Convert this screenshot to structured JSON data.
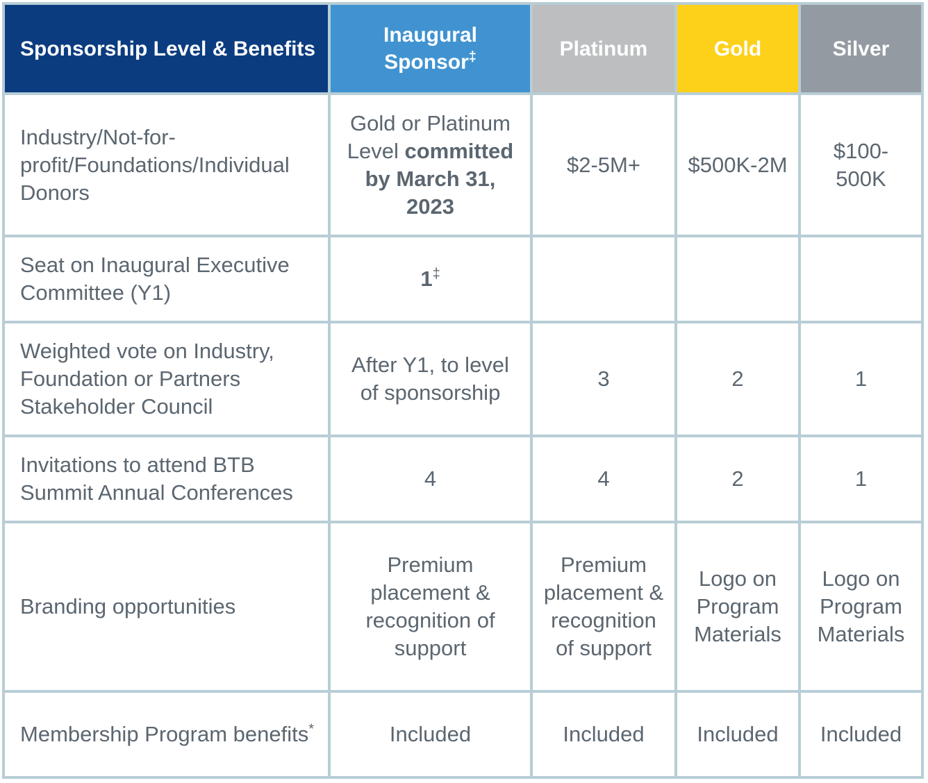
{
  "table": {
    "header": [
      {
        "text": "Sponsorship Level & Benefits"
      },
      {
        "text": "Inaugural Sponsor",
        "sup": "‡"
      },
      {
        "text": "Platinum"
      },
      {
        "text": "Gold"
      },
      {
        "text": "Silver"
      }
    ],
    "rows": [
      [
        {
          "text": "Industry/Not-for-profit/Foundations/Individual Donors"
        },
        {
          "text": "Gold or Platinum Level",
          "bold": "committed by March 31, 2023"
        },
        {
          "text": "$2-5M+"
        },
        {
          "text": "$500K-2M"
        },
        {
          "text": "$100-500K"
        }
      ],
      [
        {
          "text": "Seat on Inaugural Executive Committee (Y1)"
        },
        {
          "bold": "1",
          "sup": "‡"
        },
        null,
        null,
        null
      ],
      [
        {
          "text": "Weighted vote on Industry, Foundation or Partners Stakeholder Council"
        },
        {
          "text": "After Y1, to level of sponsorship"
        },
        {
          "text": "3"
        },
        {
          "text": "2"
        },
        {
          "text": "1"
        }
      ],
      [
        {
          "text": "Invitations to attend BTB Summit Annual Conferences"
        },
        {
          "text": "4"
        },
        {
          "text": "4"
        },
        {
          "text": "2"
        },
        {
          "text": "1"
        }
      ],
      [
        {
          "text": "Branding opportunities"
        },
        {
          "text": "Premium placement & recognition of support"
        },
        {
          "text": "Premium placement & recognition of support"
        },
        {
          "text": "Logo on Program Materials"
        },
        {
          "text": "Logo on Program Materials"
        }
      ],
      [
        {
          "text": "Membership Program benefits",
          "sup": "*"
        },
        {
          "text": "Included"
        },
        {
          "text": "Included"
        },
        {
          "text": "Included"
        },
        {
          "text": "Included"
        }
      ]
    ]
  }
}
